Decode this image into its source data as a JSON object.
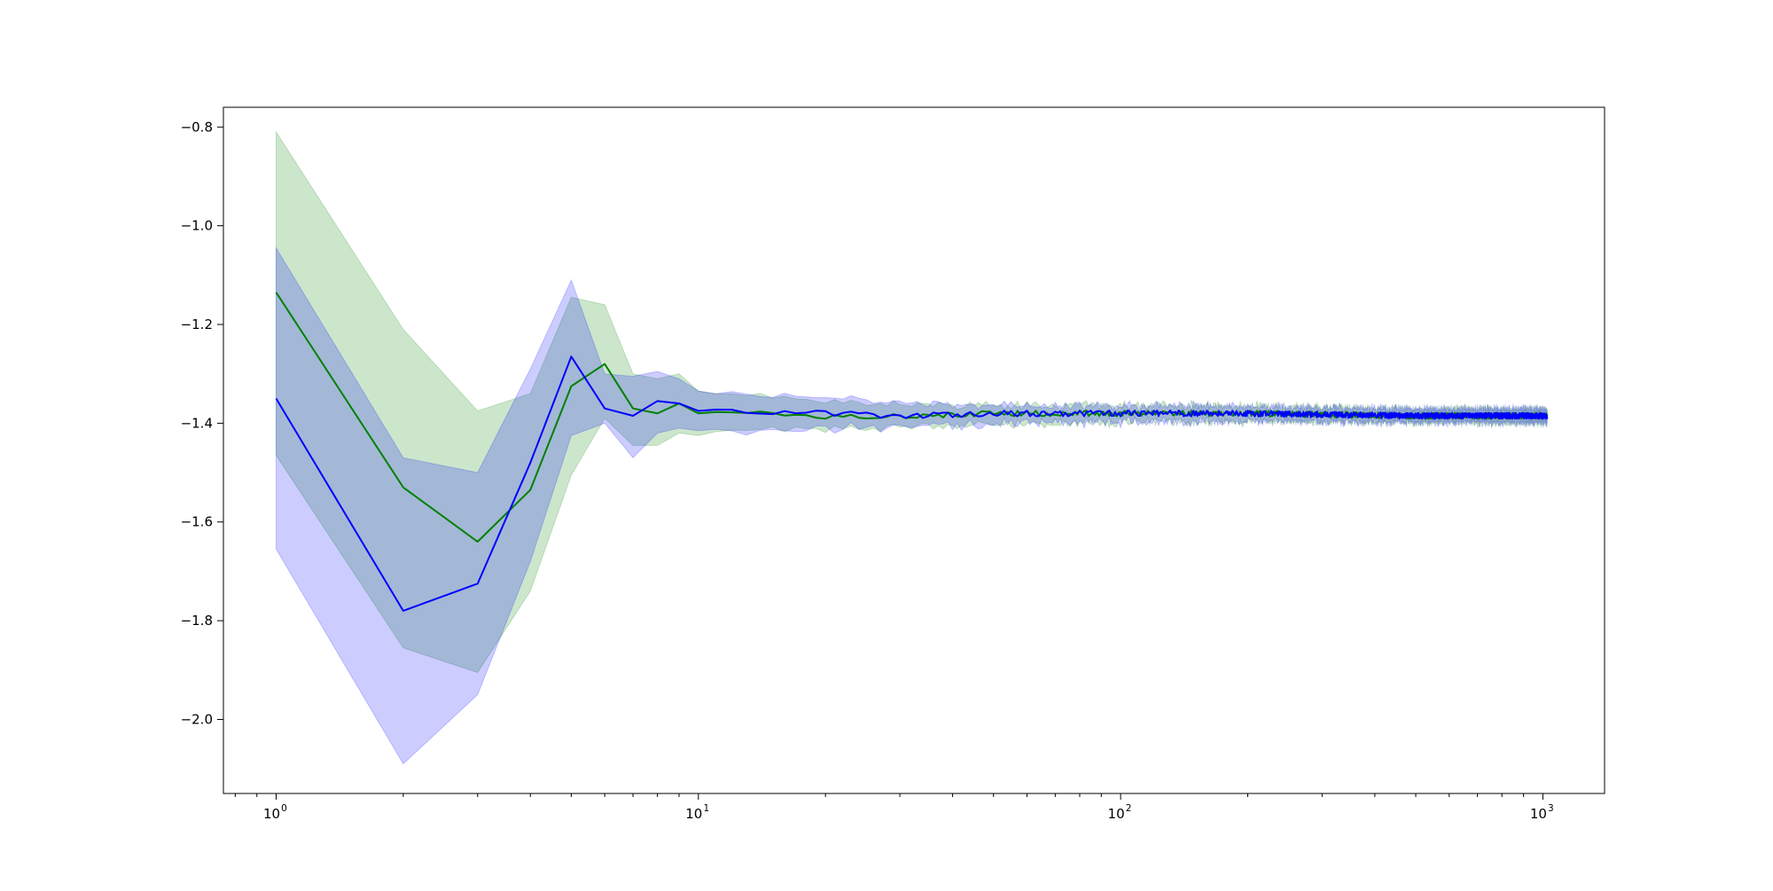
{
  "chart_data": {
    "type": "line",
    "title": "",
    "xlabel": "",
    "ylabel": "",
    "xscale": "log",
    "xlim": [
      0.75,
      1400
    ],
    "ylim": [
      -2.15,
      -0.76
    ],
    "grid": false,
    "legend": "none",
    "x_ticks": [
      {
        "value": 1,
        "label": "10",
        "exp": "0"
      },
      {
        "value": 10,
        "label": "10",
        "exp": "1"
      },
      {
        "value": 100,
        "label": "10",
        "exp": "2"
      },
      {
        "value": 1000,
        "label": "10",
        "exp": "3"
      }
    ],
    "y_ticks": [
      {
        "value": -0.8,
        "label": "−0.8"
      },
      {
        "value": -1.0,
        "label": "−1.0"
      },
      {
        "value": -1.2,
        "label": "−1.2"
      },
      {
        "value": -1.4,
        "label": "−1.4"
      },
      {
        "value": -1.6,
        "label": "−1.6"
      },
      {
        "value": -1.8,
        "label": "−1.8"
      },
      {
        "value": -2.0,
        "label": "−2.0"
      }
    ],
    "series": [
      {
        "color": "#008000",
        "band_color": "#008000",
        "band_opacity": 0.2,
        "x": [
          1,
          2,
          3,
          4,
          5,
          6,
          7,
          8,
          9,
          10,
          12,
          15,
          20,
          30,
          50,
          100,
          200,
          500,
          1024
        ],
        "mean": [
          -1.135,
          -1.53,
          -1.64,
          -1.535,
          -1.325,
          -1.28,
          -1.37,
          -1.38,
          -1.36,
          -1.38,
          -1.375,
          -1.38,
          -1.385,
          -1.385,
          -1.38,
          -1.38,
          -1.38,
          -1.385,
          -1.385
        ],
        "upper": [
          -0.81,
          -1.21,
          -1.375,
          -1.34,
          -1.145,
          -1.16,
          -1.3,
          -1.31,
          -1.3,
          -1.335,
          -1.345,
          -1.35,
          -1.36,
          -1.365,
          -1.37,
          -1.37,
          -1.372,
          -1.378,
          -1.378
        ],
        "lower": [
          -1.465,
          -1.855,
          -1.905,
          -1.74,
          -1.505,
          -1.39,
          -1.445,
          -1.445,
          -1.42,
          -1.425,
          -1.41,
          -1.405,
          -1.405,
          -1.4,
          -1.395,
          -1.392,
          -1.39,
          -1.392,
          -1.392
        ],
        "noise_from_x": 12,
        "noise_amplitude": 0.006
      },
      {
        "color": "#0000ff",
        "band_color": "#0000ff",
        "band_opacity": 0.2,
        "x": [
          1,
          2,
          3,
          4,
          5,
          6,
          7,
          8,
          9,
          10,
          12,
          15,
          20,
          30,
          50,
          100,
          200,
          500,
          1024
        ],
        "mean": [
          -1.35,
          -1.78,
          -1.725,
          -1.48,
          -1.265,
          -1.37,
          -1.385,
          -1.355,
          -1.36,
          -1.375,
          -1.37,
          -1.38,
          -1.38,
          -1.385,
          -1.38,
          -1.38,
          -1.38,
          -1.385,
          -1.385
        ],
        "upper": [
          -1.045,
          -1.47,
          -1.5,
          -1.29,
          -1.11,
          -1.3,
          -1.305,
          -1.295,
          -1.31,
          -1.335,
          -1.345,
          -1.35,
          -1.355,
          -1.365,
          -1.37,
          -1.37,
          -1.372,
          -1.378,
          -1.378
        ],
        "lower": [
          -1.655,
          -2.09,
          -1.95,
          -1.68,
          -1.425,
          -1.4,
          -1.47,
          -1.42,
          -1.41,
          -1.415,
          -1.41,
          -1.41,
          -1.405,
          -1.4,
          -1.395,
          -1.392,
          -1.39,
          -1.392,
          -1.392
        ],
        "noise_from_x": 12,
        "noise_amplitude": 0.006
      }
    ]
  }
}
